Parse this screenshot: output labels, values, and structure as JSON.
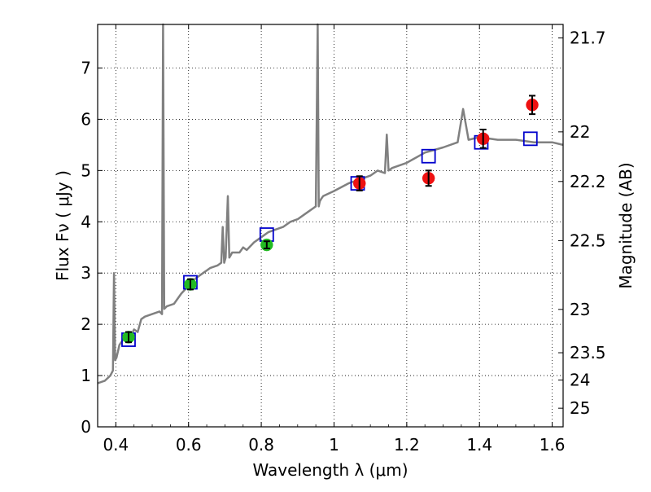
{
  "chart_data": {
    "type": "line",
    "xlabel": "Wavelength  λ (μm)",
    "ylabel": "Flux  Fν  ( μJy )",
    "y2label": "Magnitude (AB)",
    "xlim": [
      0.35,
      1.63
    ],
    "ylim": [
      0,
      7.85
    ],
    "grid": true,
    "x_ticks": [
      0.4,
      0.6,
      0.8,
      1,
      1.2,
      1.4,
      1.6
    ],
    "x_tick_labels": [
      "0.4",
      "0.6",
      "0.8",
      "1",
      "1.2",
      "1.4",
      "1.6"
    ],
    "y_ticks": [
      0,
      1,
      2,
      3,
      4,
      5,
      6,
      7
    ],
    "y_tick_labels": [
      "0",
      "1",
      "2",
      "3",
      "4",
      "5",
      "6",
      "7"
    ],
    "right_axis": {
      "scale": "AB magnitude",
      "ticks": [
        21.7,
        22,
        22.2,
        22.5,
        23,
        23.5,
        24,
        25
      ],
      "tick_labels": [
        "21.7",
        "22",
        "22.2",
        "22.5",
        "23",
        "23.5",
        "24",
        "25"
      ]
    },
    "series": [
      {
        "kind": "spectrum",
        "color": "#808080",
        "x": [
          0.35,
          0.37,
          0.385,
          0.392,
          0.395,
          0.398,
          0.402,
          0.41,
          0.42,
          0.43,
          0.44,
          0.45,
          0.46,
          0.47,
          0.48,
          0.5,
          0.52,
          0.527,
          0.53,
          0.533,
          0.54,
          0.56,
          0.58,
          0.6,
          0.62,
          0.64,
          0.66,
          0.68,
          0.69,
          0.694,
          0.698,
          0.702,
          0.708,
          0.712,
          0.716,
          0.72,
          0.74,
          0.75,
          0.76,
          0.78,
          0.8,
          0.82,
          0.84,
          0.86,
          0.88,
          0.9,
          0.92,
          0.94,
          0.95,
          0.955,
          0.958,
          0.961,
          0.965,
          0.97,
          1.0,
          1.04,
          1.06,
          1.1,
          1.12,
          1.14,
          1.145,
          1.15,
          1.16,
          1.2,
          1.25,
          1.3,
          1.34,
          1.355,
          1.37,
          1.4,
          1.45,
          1.5,
          1.55,
          1.6,
          1.63
        ],
        "y": [
          0.85,
          0.9,
          1.0,
          1.1,
          3.0,
          1.3,
          1.35,
          1.6,
          1.7,
          1.8,
          1.75,
          1.9,
          1.85,
          2.1,
          2.15,
          2.2,
          2.25,
          2.2,
          7.85,
          2.3,
          2.35,
          2.4,
          2.6,
          2.75,
          2.9,
          3.0,
          3.1,
          3.15,
          3.2,
          3.9,
          3.2,
          3.3,
          4.5,
          3.3,
          3.35,
          3.4,
          3.4,
          3.5,
          3.45,
          3.6,
          3.7,
          3.8,
          3.85,
          3.9,
          4.0,
          4.05,
          4.15,
          4.25,
          4.3,
          7.85,
          4.3,
          4.4,
          4.45,
          4.5,
          4.6,
          4.75,
          4.8,
          4.9,
          5.0,
          4.95,
          5.7,
          5.0,
          5.05,
          5.15,
          5.35,
          5.45,
          5.55,
          6.2,
          5.6,
          5.65,
          5.6,
          5.6,
          5.55,
          5.55,
          5.5
        ]
      },
      {
        "kind": "markers",
        "marker": "open-square",
        "color": "#0000cc",
        "x": [
          0.435,
          0.605,
          0.815,
          1.065,
          1.26,
          1.405,
          1.54
        ],
        "y": [
          1.7,
          2.82,
          3.75,
          4.75,
          5.28,
          5.55,
          5.62
        ]
      },
      {
        "kind": "markers",
        "marker": "circle",
        "color": "#22bb22",
        "x": [
          0.435,
          0.605,
          0.815
        ],
        "y": [
          1.75,
          2.78,
          3.55
        ],
        "yerr": [
          0.1,
          0.1,
          0.07
        ]
      },
      {
        "kind": "markers",
        "marker": "circle",
        "color": "#ee1111",
        "x": [
          1.07,
          1.26,
          1.41,
          1.545
        ],
        "y": [
          4.75,
          4.85,
          5.62,
          6.28
        ],
        "yerr": [
          0.14,
          0.15,
          0.18,
          0.18
        ]
      }
    ]
  }
}
